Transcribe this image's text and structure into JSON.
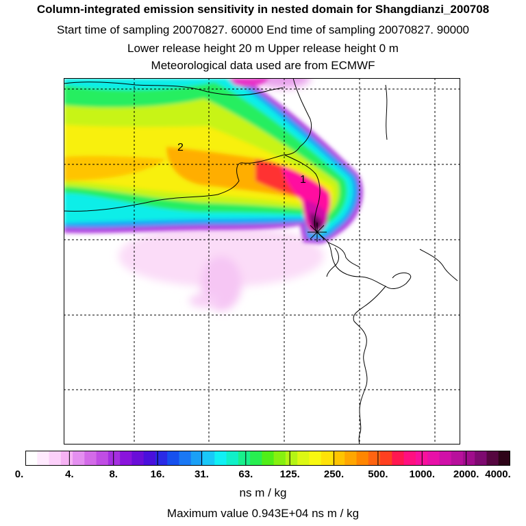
{
  "header": {
    "title": "Column-integrated emission sensitivity in nested domain for Shangdianzi_200708",
    "sampling": "Start time of sampling 20070827. 60000     End time of sampling 20070827. 90000",
    "release": "Lower release height   20 m          Upper release height    0 m",
    "meteo": "Meteorological data used are from ECMWF"
  },
  "map": {
    "labels": [
      "1",
      "2"
    ]
  },
  "colorbar": {
    "colors": [
      "#ffffff",
      "#ffeafe",
      "#fcd0fa",
      "#f6b2f4",
      "#e48ff0",
      "#d36be8",
      "#c04de4",
      "#a52fe0",
      "#8a14dc",
      "#6a0ed8",
      "#4a10dc",
      "#2a2ae6",
      "#1650ee",
      "#1a78f4",
      "#1aa0f6",
      "#1ac8f8",
      "#10f0f4",
      "#10f0c8",
      "#18f08c",
      "#28ee50",
      "#50ee18",
      "#86f010",
      "#b4f414",
      "#dcf814",
      "#f8f810",
      "#ffe208",
      "#ffc400",
      "#ffa600",
      "#ff8600",
      "#ff6410",
      "#ff4020",
      "#ff1850",
      "#ff1080",
      "#f8109c",
      "#e810a8",
      "#d010a8",
      "#b8109c",
      "#a00c8c",
      "#7e0a70",
      "#560640",
      "#2e0418"
    ],
    "tick_labels": [
      "0.",
      "4.",
      "8.",
      "16.",
      "31.",
      "63.",
      "125.",
      "250.",
      "500.",
      "1000.",
      "2000.",
      "4000."
    ],
    "units": "ns m / kg"
  },
  "footer": {
    "max_value": "Maximum value  0.943E+04 ns m / kg"
  },
  "colors": {
    "frame": "#000000",
    "grid": "#000000",
    "coast": "#000000"
  }
}
